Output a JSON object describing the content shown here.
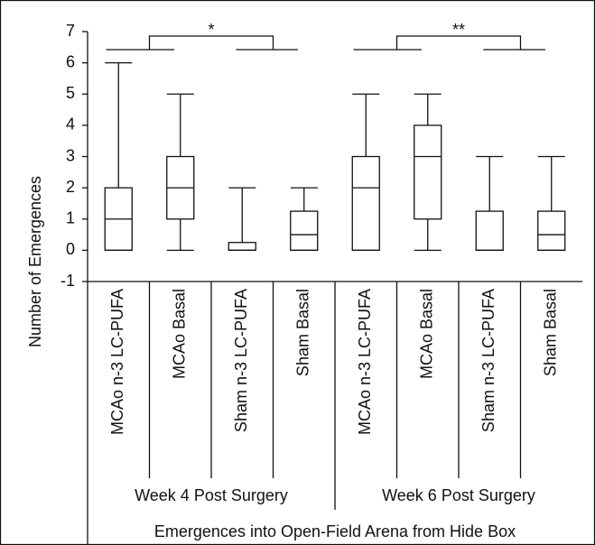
{
  "chart_data": {
    "type": "box",
    "ylabel": "Number of Emergences",
    "xlabel": "Emergences into Open-Field Arena from Hide Box",
    "categories": [
      "MCAo n-3 LC-PUFA",
      "MCAo Basal",
      "Sham n-3 LC-PUFA",
      "Sham Basal",
      "MCAo n-3 LC-PUFA",
      "MCAo Basal",
      "Sham n-3 LC-PUFA",
      "Sham Basal"
    ],
    "groups": [
      "Week 4 Post Surgery",
      "Week 6 Post Surgery"
    ],
    "min": [
      0,
      0,
      0,
      0,
      0,
      0,
      0,
      0
    ],
    "q1": [
      0,
      1,
      0,
      0,
      0,
      1,
      0,
      0
    ],
    "median": [
      1,
      2,
      0,
      0.5,
      2,
      3,
      0,
      0.5
    ],
    "q3": [
      2,
      3,
      0.25,
      1.25,
      3,
      4,
      1.25,
      1.25
    ],
    "max": [
      6,
      5,
      2,
      2,
      5,
      5,
      3,
      3
    ],
    "annotations": [
      "*",
      "**"
    ],
    "ylim": [
      -1,
      7
    ],
    "yticks": [
      -1,
      0,
      1,
      2,
      3,
      4,
      5,
      6,
      7
    ]
  }
}
